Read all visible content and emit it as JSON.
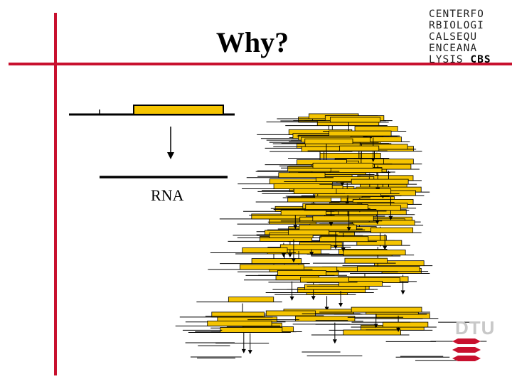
{
  "slide": {
    "title": "Why?",
    "rna_label": "RNA"
  },
  "logo": {
    "rows": [
      "CENTERFO",
      "RBIOLOGI",
      "CALSEQU",
      "ENCEANA",
      "LYSIS"
    ],
    "cbs": "CBS"
  },
  "dtu": {
    "text": "DTU"
  },
  "colors": {
    "accent_red": "#c8102e",
    "gene_fill": "#f5c400",
    "line": "#000000"
  }
}
